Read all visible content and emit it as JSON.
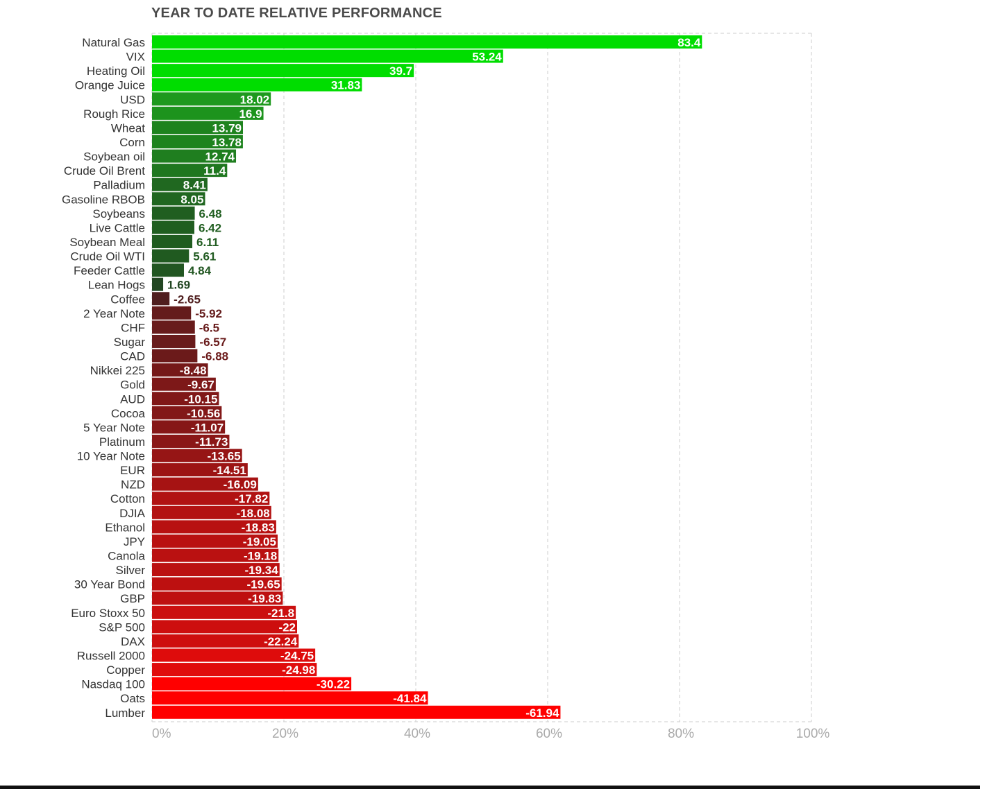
{
  "chart_data": {
    "type": "bar",
    "orientation": "horizontal",
    "title": "YEAR TO DATE RELATIVE PERFORMANCE",
    "bar_length": "absolute value",
    "xlim": [
      0,
      100
    ],
    "x_ticks": [
      "0%",
      "20%",
      "40%",
      "60%",
      "80%",
      "100%"
    ],
    "grid": "vertical dashed",
    "colors": {
      "positive_high": "#00dd00",
      "positive_low": "#223d22",
      "negative_low": "#3e2020",
      "negative_high": "#ff0000"
    },
    "categories": [
      "Natural Gas",
      "VIX",
      "Heating Oil",
      "Orange Juice",
      "USD",
      "Rough Rice",
      "Wheat",
      "Corn",
      "Soybean oil",
      "Crude Oil Brent",
      "Palladium",
      "Gasoline RBOB",
      "Soybeans",
      "Live Cattle",
      "Soybean Meal",
      "Crude Oil WTI",
      "Feeder Cattle",
      "Lean Hogs",
      "Coffee",
      "2 Year Note",
      "CHF",
      "Sugar",
      "CAD",
      "Nikkei 225",
      "Gold",
      "AUD",
      "Cocoa",
      "5 Year Note",
      "Platinum",
      "10 Year Note",
      "EUR",
      "NZD",
      "Cotton",
      "DJIA",
      "Ethanol",
      "JPY",
      "Canola",
      "Silver",
      "30 Year Bond",
      "GBP",
      "Euro Stoxx 50",
      "S&P 500",
      "DAX",
      "Russell 2000",
      "Copper",
      "Nasdaq 100",
      "Oats",
      "Lumber"
    ],
    "values": [
      83.4,
      53.24,
      39.7,
      31.83,
      18.02,
      16.9,
      13.79,
      13.78,
      12.74,
      11.4,
      8.41,
      8.05,
      6.48,
      6.42,
      6.11,
      5.61,
      4.84,
      1.69,
      -2.65,
      -5.92,
      -6.5,
      -6.57,
      -6.88,
      -8.48,
      -9.67,
      -10.15,
      -10.56,
      -11.07,
      -11.73,
      -13.65,
      -14.51,
      -16.09,
      -17.82,
      -18.08,
      -18.83,
      -19.05,
      -19.18,
      -19.34,
      -19.65,
      -19.83,
      -21.8,
      -22,
      -22.24,
      -24.75,
      -24.98,
      -30.22,
      -41.84,
      -61.94
    ],
    "value_labels": [
      "83.4",
      "53.24",
      "39.7",
      "31.83",
      "18.02",
      "16.9",
      "13.79",
      "13.78",
      "12.74",
      "11.4",
      "8.41",
      "8.05",
      "6.48",
      "6.42",
      "6.11",
      "5.61",
      "4.84",
      "1.69",
      "-2.65",
      "-5.92",
      "-6.5",
      "-6.57",
      "-6.88",
      "-8.48",
      "-9.67",
      "-10.15",
      "-10.56",
      "-11.07",
      "-11.73",
      "-13.65",
      "-14.51",
      "-16.09",
      "-17.82",
      "-18.08",
      "-18.83",
      "-19.05",
      "-19.18",
      "-19.34",
      "-19.65",
      "-19.83",
      "-21.8",
      "-22",
      "-22.24",
      "-24.75",
      "-24.98",
      "-30.22",
      "-41.84",
      "-61.94"
    ]
  }
}
